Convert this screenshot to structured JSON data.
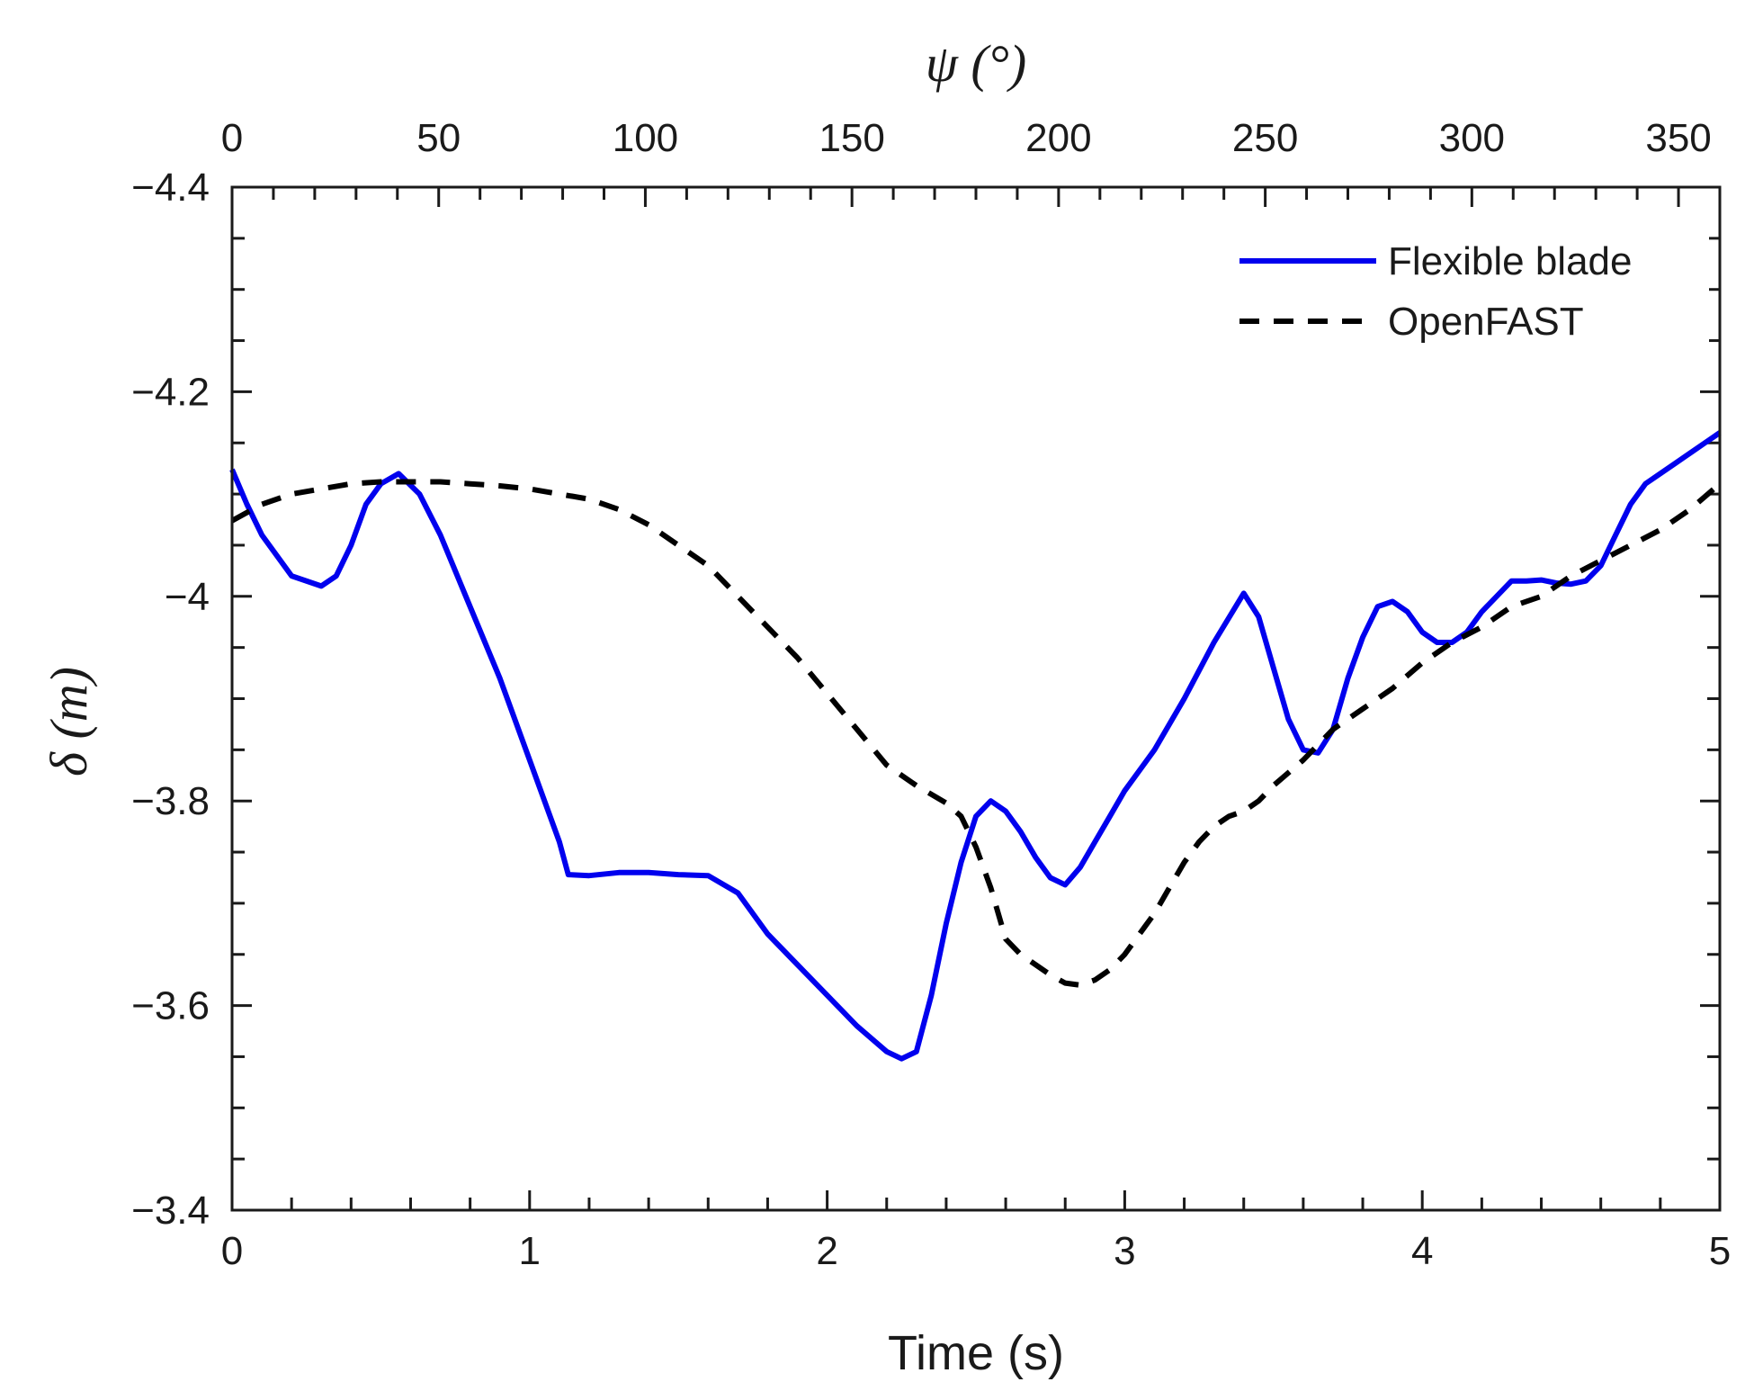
{
  "chart_data": {
    "type": "line",
    "xlabel": "Time (s)",
    "ylabel": "δ (m)",
    "x2label": "ψ (°)",
    "xlim": [
      0,
      5
    ],
    "ylim": [
      -4.4,
      -3.4
    ],
    "y_reversed": true,
    "x2lim": [
      0,
      360
    ],
    "x_ticks": [
      "0",
      "1",
      "2",
      "3",
      "4",
      "5"
    ],
    "y_ticks": [
      "-4.4",
      "-4.2",
      "-4",
      "-3.8",
      "-3.6",
      "-3.4"
    ],
    "x2_ticks": [
      "0",
      "50",
      "100",
      "150",
      "200",
      "250",
      "300",
      "350"
    ],
    "legend_position": "top-right",
    "series": [
      {
        "name": "Flexible blade",
        "color": "#0000ee",
        "style": "solid",
        "x": [
          0.0,
          0.05,
          0.1,
          0.2,
          0.3,
          0.35,
          0.4,
          0.45,
          0.5,
          0.56,
          0.63,
          0.7,
          0.8,
          0.9,
          1.0,
          1.1,
          1.13,
          1.2,
          1.3,
          1.4,
          1.5,
          1.6,
          1.7,
          1.8,
          1.9,
          2.0,
          2.1,
          2.2,
          2.25,
          2.3,
          2.35,
          2.4,
          2.45,
          2.5,
          2.55,
          2.6,
          2.65,
          2.7,
          2.75,
          2.8,
          2.85,
          2.9,
          2.95,
          3.0,
          3.1,
          3.2,
          3.3,
          3.4,
          3.45,
          3.5,
          3.55,
          3.6,
          3.65,
          3.7,
          3.75,
          3.8,
          3.85,
          3.9,
          3.95,
          4.0,
          4.05,
          4.1,
          4.15,
          4.2,
          4.25,
          4.3,
          4.35,
          4.4,
          4.45,
          4.5,
          4.55,
          4.6,
          4.65,
          4.7,
          4.75,
          4.8,
          4.85,
          4.9,
          4.95,
          5.0
        ],
        "values": [
          -4.124,
          -4.09,
          -4.06,
          -4.02,
          -4.01,
          -4.02,
          -4.05,
          -4.09,
          -4.11,
          -4.12,
          -4.1,
          -4.06,
          -3.99,
          -3.92,
          -3.84,
          -3.76,
          -3.728,
          -3.727,
          -3.73,
          -3.73,
          -3.728,
          -3.727,
          -3.71,
          -3.67,
          -3.64,
          -3.61,
          -3.58,
          -3.555,
          -3.548,
          -3.555,
          -3.61,
          -3.68,
          -3.74,
          -3.785,
          -3.8,
          -3.79,
          -3.77,
          -3.745,
          -3.725,
          -3.718,
          -3.735,
          -3.76,
          -3.785,
          -3.81,
          -3.85,
          -3.9,
          -3.955,
          -4.003,
          -3.98,
          -3.93,
          -3.88,
          -3.85,
          -3.847,
          -3.87,
          -3.92,
          -3.96,
          -3.99,
          -3.995,
          -3.985,
          -3.965,
          -3.955,
          -3.955,
          -3.965,
          -3.985,
          -4.0,
          -4.015,
          -4.015,
          -4.016,
          -4.013,
          -4.012,
          -4.015,
          -4.03,
          -4.06,
          -4.09,
          -4.11,
          -4.12,
          -4.13,
          -4.14,
          -4.15,
          -4.16
        ]
      },
      {
        "name": "OpenFAST",
        "color": "#000000",
        "style": "dashed",
        "x": [
          0.0,
          0.1,
          0.2,
          0.3,
          0.4,
          0.5,
          0.6,
          0.7,
          0.8,
          0.9,
          1.0,
          1.1,
          1.2,
          1.3,
          1.4,
          1.5,
          1.6,
          1.7,
          1.8,
          1.9,
          2.0,
          2.1,
          2.2,
          2.3,
          2.4,
          2.45,
          2.5,
          2.55,
          2.6,
          2.65,
          2.7,
          2.75,
          2.8,
          2.85,
          2.9,
          2.95,
          3.0,
          3.05,
          3.1,
          3.15,
          3.2,
          3.25,
          3.3,
          3.35,
          3.4,
          3.45,
          3.5,
          3.6,
          3.7,
          3.8,
          3.9,
          4.0,
          4.1,
          4.2,
          4.3,
          4.4,
          4.5,
          4.6,
          4.7,
          4.8,
          4.9,
          5.0
        ],
        "values": [
          -4.074,
          -4.09,
          -4.1,
          -4.105,
          -4.11,
          -4.112,
          -4.112,
          -4.112,
          -4.11,
          -4.108,
          -4.105,
          -4.1,
          -4.095,
          -4.085,
          -4.07,
          -4.05,
          -4.03,
          -4.0,
          -3.97,
          -3.94,
          -3.905,
          -3.87,
          -3.835,
          -3.815,
          -3.798,
          -3.785,
          -3.755,
          -3.715,
          -3.665,
          -3.65,
          -3.64,
          -3.63,
          -3.622,
          -3.62,
          -3.625,
          -3.635,
          -3.65,
          -3.67,
          -3.69,
          -3.715,
          -3.74,
          -3.76,
          -3.775,
          -3.785,
          -3.79,
          -3.8,
          -3.815,
          -3.84,
          -3.87,
          -3.89,
          -3.91,
          -3.935,
          -3.955,
          -3.97,
          -3.99,
          -4.0,
          -4.02,
          -4.035,
          -4.05,
          -4.065,
          -4.085,
          -4.11
        ]
      }
    ]
  }
}
